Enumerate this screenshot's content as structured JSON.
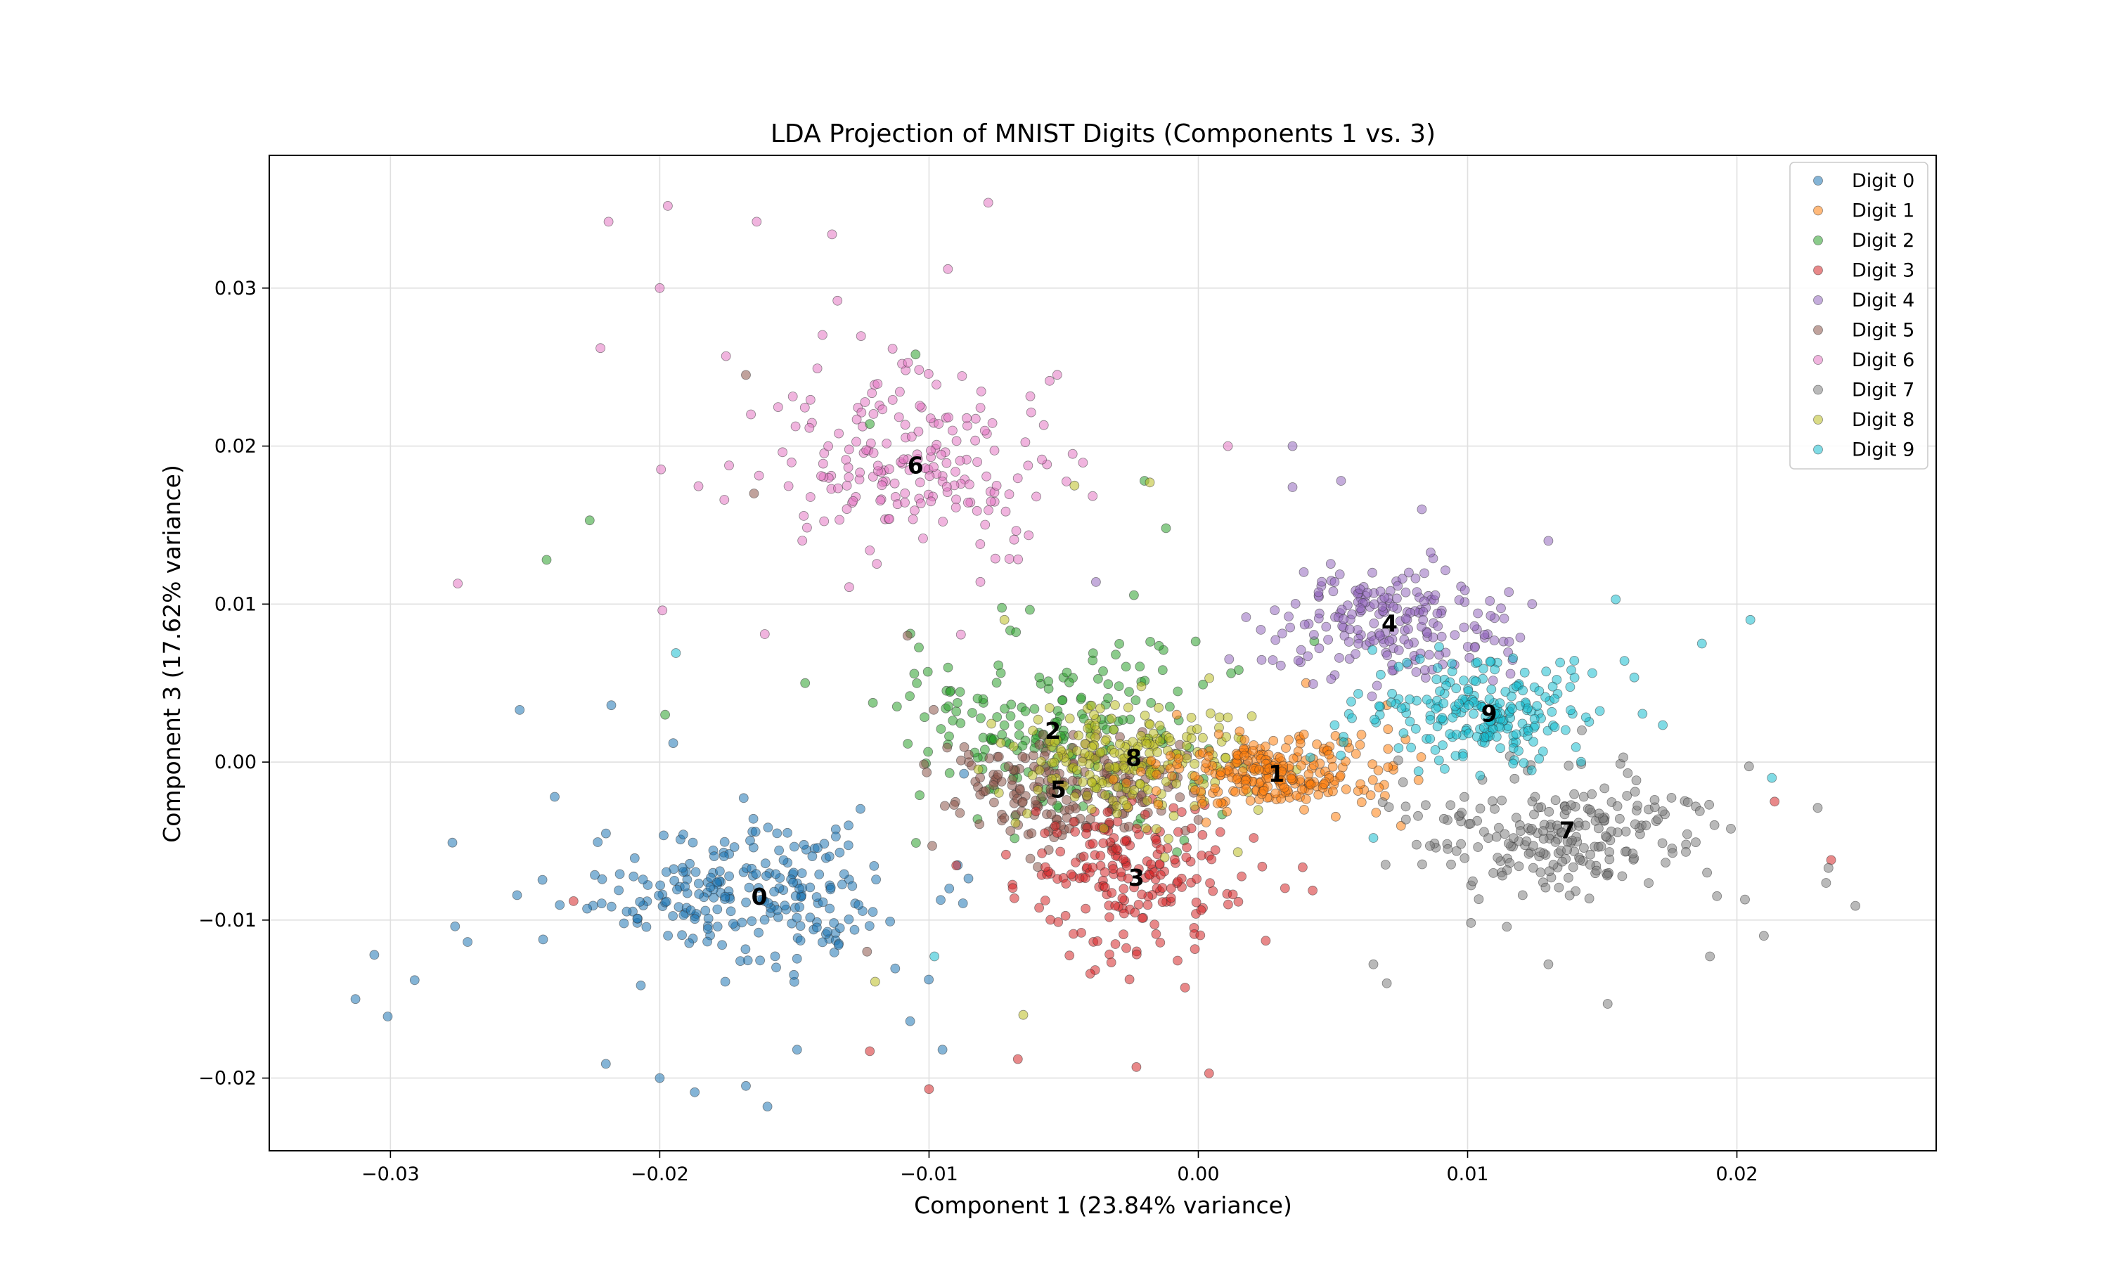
{
  "chart_data": {
    "type": "scatter",
    "title": "LDA Projection of MNIST Digits (Components 1 vs. 3)",
    "xlabel": "Component 1 (23.84% variance)",
    "ylabel": "Component 3 (17.62% variance)",
    "xlim": [
      -0.0345,
      0.0274
    ],
    "ylim": [
      -0.0246,
      0.0384
    ],
    "xticks": [
      -0.03,
      -0.02,
      -0.01,
      0.0,
      0.01,
      0.02
    ],
    "xtick_labels": [
      "−0.03",
      "−0.02",
      "−0.01",
      "0.00",
      "0.01",
      "0.02"
    ],
    "yticks": [
      -0.02,
      -0.01,
      0.0,
      0.01,
      0.02,
      0.03
    ],
    "ytick_labels": [
      "−0.02",
      "−0.01",
      "0.00",
      "0.01",
      "0.02",
      "0.03"
    ],
    "grid": true,
    "legend_position": "top-right",
    "series": [
      {
        "name": "Digit 0",
        "label": "0",
        "color": "#1f77b4",
        "centroid": [
          -0.0163,
          -0.0085
        ],
        "spread": [
          0.0052,
          0.0037
        ],
        "count": 240,
        "points": [
          [
            -0.0313,
            -0.015
          ],
          [
            -0.0306,
            -0.0122
          ],
          [
            -0.0301,
            -0.0161
          ],
          [
            -0.0291,
            -0.0138
          ],
          [
            -0.0277,
            -0.0051
          ],
          [
            -0.0276,
            -0.0104
          ],
          [
            -0.0252,
            0.0033
          ],
          [
            -0.0239,
            -0.0022
          ],
          [
            -0.0218,
            0.0036
          ],
          [
            -0.022,
            -0.0191
          ],
          [
            -0.02,
            -0.02
          ],
          [
            -0.0187,
            -0.0209
          ],
          [
            -0.0168,
            -0.0205
          ],
          [
            -0.016,
            -0.0218
          ],
          [
            -0.0149,
            -0.0182
          ],
          [
            -0.0107,
            -0.0164
          ],
          [
            -0.0095,
            -0.0182
          ],
          [
            -0.0195,
            0.0012
          ]
        ]
      },
      {
        "name": "Digit 1",
        "label": "1",
        "color": "#ff7f0e",
        "centroid": [
          0.0029,
          -0.0007
        ],
        "spread": [
          0.0032,
          0.0018
        ],
        "count": 250,
        "points": [
          [
            0.007,
            0.0036
          ],
          [
            0.0066,
            -0.0032
          ],
          [
            0.004,
            0.005
          ],
          [
            -0.0008,
            0.003
          ],
          [
            0.0056,
            0.0009
          ]
        ]
      },
      {
        "name": "Digit 2",
        "label": "2",
        "color": "#2ca02c",
        "centroid": [
          -0.0054,
          0.002
        ],
        "spread": [
          0.005,
          0.0048
        ],
        "count": 200,
        "points": [
          [
            -0.0226,
            0.0153
          ],
          [
            -0.0242,
            0.0128
          ],
          [
            -0.0198,
            0.003
          ],
          [
            -0.0146,
            0.005
          ],
          [
            -0.0012,
            0.0148
          ],
          [
            -0.0105,
            0.0258
          ],
          [
            -0.0122,
            0.0214
          ],
          [
            -0.002,
            0.0178
          ]
        ]
      },
      {
        "name": "Digit 3",
        "label": "3",
        "color": "#d62728",
        "centroid": [
          -0.0023,
          -0.0073
        ],
        "spread": [
          0.0036,
          0.0036
        ],
        "count": 200,
        "points": [
          [
            -0.0232,
            -0.0088
          ],
          [
            -0.0122,
            -0.0183
          ],
          [
            -0.01,
            -0.0207
          ],
          [
            -0.0067,
            -0.0188
          ],
          [
            -0.0023,
            -0.0193
          ],
          [
            0.0004,
            -0.0197
          ],
          [
            0.0214,
            -0.0025
          ],
          [
            0.0235,
            -0.0062
          ]
        ]
      },
      {
        "name": "Digit 4",
        "label": "4",
        "color": "#9467bd",
        "centroid": [
          0.0071,
          0.0088
        ],
        "spread": [
          0.0036,
          0.003
        ],
        "count": 200,
        "points": [
          [
            0.0035,
            0.02
          ],
          [
            0.0053,
            0.0178
          ],
          [
            0.0035,
            0.0174
          ],
          [
            0.0083,
            0.016
          ],
          [
            0.013,
            0.014
          ],
          [
            -0.0038,
            0.0114
          ]
        ]
      },
      {
        "name": "Digit 5",
        "label": "5",
        "color": "#8c564b",
        "centroid": [
          -0.0052,
          -0.0017
        ],
        "spread": [
          0.0038,
          0.003
        ],
        "count": 200,
        "points": [
          [
            -0.0165,
            0.017
          ],
          [
            -0.0168,
            0.0245
          ],
          [
            -0.0108,
            0.008
          ],
          [
            -0.0123,
            -0.012
          ]
        ]
      },
      {
        "name": "Digit 6",
        "label": "6",
        "color": "#e377c2",
        "centroid": [
          -0.0105,
          0.0188
        ],
        "spread": [
          0.0044,
          0.0048
        ],
        "count": 200,
        "points": [
          [
            -0.0219,
            0.0342
          ],
          [
            -0.0197,
            0.0352
          ],
          [
            -0.0164,
            0.0342
          ],
          [
            -0.0136,
            0.0334
          ],
          [
            -0.0078,
            0.0354
          ],
          [
            -0.0093,
            0.0312
          ],
          [
            -0.02,
            0.03
          ],
          [
            -0.0275,
            0.0113
          ],
          [
            -0.0222,
            0.0262
          ],
          [
            -0.0199,
            0.0096
          ],
          [
            -0.0176,
            0.0166
          ],
          [
            -0.0161,
            0.0081
          ],
          [
            -0.0134,
            0.0292
          ],
          [
            0.0011,
            0.02
          ]
        ]
      },
      {
        "name": "Digit 7",
        "label": "7",
        "color": "#7f7f7f",
        "centroid": [
          0.0137,
          -0.0043
        ],
        "spread": [
          0.0045,
          0.0035
        ],
        "count": 230,
        "points": [
          [
            0.0244,
            -0.0091
          ],
          [
            0.0234,
            -0.0067
          ],
          [
            0.023,
            -0.0029
          ],
          [
            0.021,
            -0.011
          ],
          [
            0.0203,
            -0.0087
          ],
          [
            0.019,
            -0.0123
          ],
          [
            0.0152,
            -0.0153
          ],
          [
            0.013,
            -0.0128
          ],
          [
            0.007,
            -0.014
          ],
          [
            0.0065,
            -0.0128
          ]
        ]
      },
      {
        "name": "Digit 8",
        "label": "8",
        "color": "#bcbd22",
        "centroid": [
          -0.0024,
          0.0003
        ],
        "spread": [
          0.0034,
          0.003
        ],
        "count": 210,
        "points": [
          [
            -0.0018,
            0.0177
          ],
          [
            -0.0046,
            0.0175
          ],
          [
            -0.012,
            -0.0139
          ],
          [
            -0.0065,
            -0.016
          ],
          [
            -0.0072,
            0.009
          ]
        ]
      },
      {
        "name": "Digit 9",
        "label": "9",
        "color": "#17becf",
        "centroid": [
          0.0108,
          0.0031
        ],
        "spread": [
          0.0036,
          0.0028
        ],
        "count": 220,
        "points": [
          [
            0.0205,
            0.009
          ],
          [
            0.0187,
            0.0075
          ],
          [
            0.0213,
            -0.001
          ],
          [
            0.0155,
            0.0103
          ],
          [
            -0.0194,
            0.0069
          ],
          [
            -0.0098,
            -0.0123
          ],
          [
            0.0065,
            -0.0048
          ]
        ]
      }
    ]
  }
}
